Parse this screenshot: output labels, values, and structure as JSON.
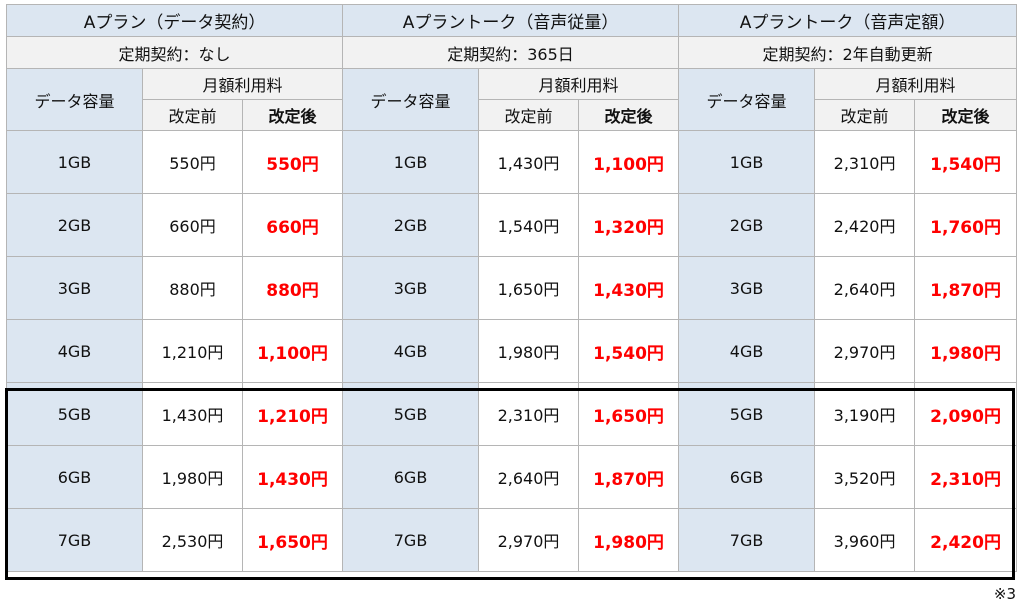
{
  "plans": [
    {
      "title": "Aプラン（データ契約）",
      "contract": "定期契約：なし"
    },
    {
      "title": "Aプラントーク（音声従量）",
      "contract": "定期契約：365日"
    },
    {
      "title": "Aプラントーク（音声定額）",
      "contract": "定期契約：2年自動更新"
    }
  ],
  "headers": {
    "data_capacity": "データ容量",
    "monthly_fee": "月額利用料",
    "before": "改定前",
    "after": "改定後"
  },
  "rows": [
    {
      "cap": "1GB",
      "p": [
        [
          "550円",
          "550円"
        ],
        [
          "1,430円",
          "1,100円"
        ],
        [
          "2,310円",
          "1,540円"
        ]
      ]
    },
    {
      "cap": "2GB",
      "p": [
        [
          "660円",
          "660円"
        ],
        [
          "1,540円",
          "1,320円"
        ],
        [
          "2,420円",
          "1,760円"
        ]
      ]
    },
    {
      "cap": "3GB",
      "p": [
        [
          "880円",
          "880円"
        ],
        [
          "1,650円",
          "1,430円"
        ],
        [
          "2,640円",
          "1,870円"
        ]
      ]
    },
    {
      "cap": "4GB",
      "p": [
        [
          "1,210円",
          "1,100円"
        ],
        [
          "1,980円",
          "1,540円"
        ],
        [
          "2,970円",
          "1,980円"
        ]
      ]
    },
    {
      "cap": "5GB",
      "p": [
        [
          "1,430円",
          "1,210円"
        ],
        [
          "2,310円",
          "1,650円"
        ],
        [
          "3,190円",
          "2,090円"
        ]
      ]
    },
    {
      "cap": "6GB",
      "p": [
        [
          "1,980円",
          "1,430円"
        ],
        [
          "2,640円",
          "1,870円"
        ],
        [
          "3,520円",
          "2,310円"
        ]
      ]
    },
    {
      "cap": "7GB",
      "p": [
        [
          "2,530円",
          "1,650円"
        ],
        [
          "2,970円",
          "1,980円"
        ],
        [
          "3,960円",
          "2,420円"
        ]
      ]
    }
  ],
  "note": "※3",
  "colors": {
    "header_bg": "#dce6f1",
    "price_after": "#ff0000",
    "highlight_border": "#000000"
  }
}
